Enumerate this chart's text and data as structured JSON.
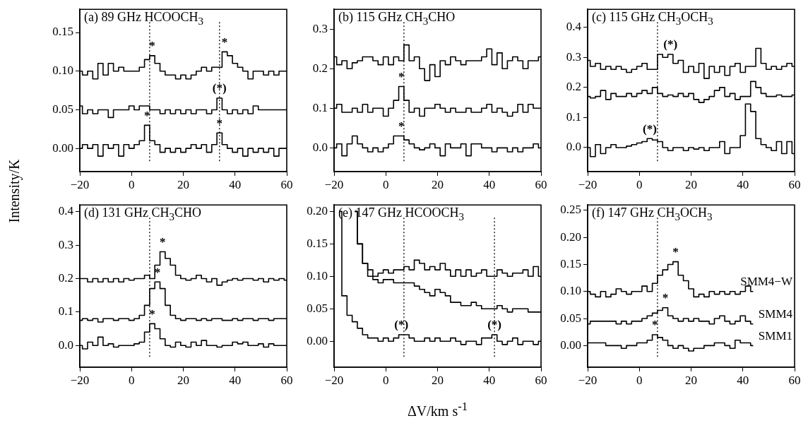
{
  "chart_data": [
    {
      "type": "step",
      "title": "(a) 89 GHz HCOOCH$_{3}$",
      "ylabel": "Intensity/K",
      "x": [
        -20,
        -18,
        -16,
        -14,
        -12,
        -10,
        -8,
        -6,
        -4,
        -2,
        0,
        2,
        4,
        6,
        8,
        10,
        12,
        14,
        16,
        18,
        20,
        22,
        24,
        26,
        28,
        30,
        32,
        34,
        36,
        38,
        40,
        42,
        44,
        46,
        48,
        50,
        52,
        54,
        56,
        58,
        60
      ],
      "xlim": [
        -20,
        60
      ],
      "xticks": [
        -20,
        0,
        20,
        40,
        60
      ],
      "ylim": [
        -0.03,
        0.18
      ],
      "yticks": [
        {
          "value": 0,
          "label": "0.00"
        },
        {
          "value": 0.05,
          "label": "0.05"
        },
        {
          "value": 0.1,
          "label": "0.10"
        },
        {
          "value": 0.15,
          "label": "0.15"
        }
      ],
      "series": [
        {
          "color": "#000000",
          "values": [
            0.1,
            0.095,
            0.1,
            0.09,
            0.11,
            0.095,
            0.11,
            0.1,
            0.105,
            0.1,
            0.1,
            0.1,
            0.105,
            0.115,
            0.12,
            0.11,
            0.1,
            0.095,
            0.095,
            0.09,
            0.095,
            0.09,
            0.095,
            0.1,
            0.105,
            0.1,
            0.105,
            0.105,
            0.125,
            0.12,
            0.11,
            0.105,
            0.1,
            0.09,
            0.1,
            0.1,
            0.095,
            0.1,
            0.095,
            0.1,
            0.1
          ]
        },
        {
          "color": "#000000",
          "values": [
            0.055,
            0.045,
            0.05,
            0.045,
            0.05,
            0.05,
            0.04,
            0.05,
            0.05,
            0.05,
            0.055,
            0.05,
            0.055,
            0.055,
            0.05,
            0.05,
            0.045,
            0.05,
            0.045,
            0.05,
            0.045,
            0.05,
            0.045,
            0.05,
            0.05,
            0.045,
            0.05,
            0.065,
            0.05,
            0.045,
            0.05,
            0.045,
            0.05,
            0.045,
            0.055,
            0.05,
            0.05,
            0.05,
            0.05,
            0.05,
            0.05
          ]
        },
        {
          "color": "#000000",
          "values": [
            0.0,
            0.005,
            0.0,
            0.005,
            -0.01,
            0.005,
            0.0,
            0.005,
            -0.01,
            0.005,
            0.0,
            0.005,
            0.01,
            0.03,
            0.01,
            0.005,
            -0.005,
            0.0,
            -0.005,
            0.0,
            -0.005,
            0.0,
            0.005,
            0.0,
            0.005,
            -0.005,
            0.005,
            0.02,
            0.005,
            0.0,
            -0.005,
            0.0,
            -0.01,
            0.0,
            -0.005,
            0.0,
            -0.005,
            0.0,
            -0.01,
            0.0,
            0.0
          ]
        }
      ],
      "ref_lines": [
        {
          "axis": "x",
          "value": 7,
          "line_style": "dotted"
        },
        {
          "axis": "x",
          "value": 34,
          "line_style": "dotted"
        }
      ],
      "annotations": [
        {
          "text": "*",
          "x": 8,
          "y": 0.12
        },
        {
          "text": "*",
          "x": 36,
          "y": 0.125
        },
        {
          "text": "(*)",
          "x": 34,
          "y": 0.065
        },
        {
          "text": "*",
          "x": 6,
          "y": 0.03
        },
        {
          "text": "*",
          "x": 34,
          "y": 0.02
        }
      ]
    },
    {
      "type": "step",
      "title": "(b) 115 GHz CH$_{3}$CHO",
      "x": [
        -20,
        -18,
        -16,
        -14,
        -12,
        -10,
        -8,
        -6,
        -4,
        -2,
        0,
        2,
        4,
        6,
        8,
        10,
        12,
        14,
        16,
        18,
        20,
        22,
        24,
        26,
        28,
        30,
        32,
        34,
        36,
        38,
        40,
        42,
        44,
        46,
        48,
        50,
        52,
        54,
        56,
        58,
        60
      ],
      "xlim": [
        -20,
        60
      ],
      "xticks": [
        -20,
        0,
        20,
        40,
        60
      ],
      "ylim": [
        -0.06,
        0.35
      ],
      "yticks": [
        {
          "value": 0,
          "label": "0.0"
        },
        {
          "value": 0.1,
          "label": "0.1"
        },
        {
          "value": 0.2,
          "label": "0.2"
        },
        {
          "value": 0.3,
          "label": "0.3"
        }
      ],
      "series": [
        {
          "color": "#000000",
          "values": [
            0.23,
            0.21,
            0.22,
            0.2,
            0.215,
            0.22,
            0.23,
            0.23,
            0.22,
            0.21,
            0.23,
            0.21,
            0.23,
            0.22,
            0.26,
            0.22,
            0.23,
            0.2,
            0.17,
            0.21,
            0.18,
            0.22,
            0.21,
            0.23,
            0.22,
            0.21,
            0.22,
            0.22,
            0.22,
            0.23,
            0.25,
            0.21,
            0.24,
            0.2,
            0.22,
            0.23,
            0.22,
            0.2,
            0.22,
            0.22,
            0.23
          ]
        },
        {
          "color": "#000000",
          "values": [
            0.1,
            0.11,
            0.09,
            0.09,
            0.1,
            0.09,
            0.11,
            0.09,
            0.1,
            0.1,
            0.08,
            0.1,
            0.12,
            0.155,
            0.12,
            0.09,
            0.1,
            0.08,
            0.1,
            0.1,
            0.11,
            0.1,
            0.09,
            0.1,
            0.09,
            0.09,
            0.1,
            0.09,
            0.09,
            0.1,
            0.11,
            0.09,
            0.1,
            0.09,
            0.08,
            0.09,
            0.11,
            0.09,
            0.11,
            0.1,
            0.1
          ]
        },
        {
          "color": "#000000",
          "values": [
            0.0,
            0.01,
            -0.02,
            0.01,
            0.03,
            0.01,
            0.0,
            -0.01,
            0.0,
            -0.01,
            0.0,
            0.01,
            0.03,
            0.03,
            0.02,
            0.01,
            0.0,
            -0.005,
            0.0,
            0.01,
            0.0,
            -0.02,
            0.01,
            0.0,
            0.0,
            0.01,
            -0.02,
            0.01,
            0.01,
            0.0,
            0.0,
            -0.01,
            0.0,
            0.0,
            -0.01,
            0.0,
            -0.01,
            0.0,
            0.0,
            0.01,
            0.0
          ]
        }
      ],
      "ref_lines": [
        {
          "axis": "x",
          "value": 7,
          "line_style": "dotted"
        }
      ],
      "annotations": [
        {
          "text": "*",
          "x": 6,
          "y": 0.155
        },
        {
          "text": "*",
          "x": 6,
          "y": 0.03
        }
      ]
    },
    {
      "type": "step",
      "title": "(c) 115 GHz CH$_{3}$OCH$_{3}$",
      "x": [
        -20,
        -18,
        -16,
        -14,
        -12,
        -10,
        -8,
        -6,
        -4,
        -2,
        0,
        2,
        4,
        6,
        8,
        10,
        12,
        14,
        16,
        18,
        20,
        22,
        24,
        26,
        28,
        30,
        32,
        34,
        36,
        38,
        40,
        42,
        44,
        46,
        48,
        50,
        52,
        54,
        56,
        58,
        60
      ],
      "xlim": [
        -20,
        60
      ],
      "xticks": [
        -20,
        0,
        20,
        40,
        60
      ],
      "ylim": [
        -0.08,
        0.46
      ],
      "yticks": [
        {
          "value": 0,
          "label": "0.0"
        },
        {
          "value": 0.1,
          "label": "0.1"
        },
        {
          "value": 0.2,
          "label": "0.2"
        },
        {
          "value": 0.3,
          "label": "0.3"
        },
        {
          "value": 0.4,
          "label": "0.4"
        }
      ],
      "series": [
        {
          "color": "#000000",
          "values": [
            0.29,
            0.27,
            0.28,
            0.26,
            0.27,
            0.26,
            0.27,
            0.26,
            0.25,
            0.26,
            0.27,
            0.28,
            0.26,
            0.26,
            0.31,
            0.3,
            0.31,
            0.28,
            0.29,
            0.25,
            0.27,
            0.25,
            0.28,
            0.23,
            0.27,
            0.25,
            0.27,
            0.24,
            0.27,
            0.28,
            0.25,
            0.27,
            0.27,
            0.33,
            0.28,
            0.26,
            0.27,
            0.26,
            0.27,
            0.28,
            0.27
          ]
        },
        {
          "color": "#000000",
          "values": [
            0.17,
            0.165,
            0.17,
            0.19,
            0.16,
            0.18,
            0.17,
            0.17,
            0.18,
            0.17,
            0.18,
            0.19,
            0.18,
            0.2,
            0.18,
            0.17,
            0.175,
            0.17,
            0.18,
            0.17,
            0.18,
            0.16,
            0.15,
            0.16,
            0.17,
            0.19,
            0.2,
            0.17,
            0.18,
            0.16,
            0.17,
            0.17,
            0.22,
            0.2,
            0.18,
            0.17,
            0.17,
            0.175,
            0.17,
            0.17,
            0.175
          ]
        },
        {
          "color": "#000000",
          "values": [
            0.0,
            -0.03,
            0.01,
            -0.02,
            0.0,
            0.01,
            0.0,
            0.0,
            0.005,
            0.01,
            0.015,
            0.02,
            0.03,
            0.025,
            0.02,
            0.0,
            -0.01,
            0.0,
            0.0,
            -0.01,
            0.0,
            -0.005,
            0.0,
            -0.01,
            0.0,
            0.0,
            0.02,
            -0.02,
            0.0,
            0.0,
            0.04,
            0.145,
            0.12,
            0.03,
            0.01,
            0.0,
            -0.01,
            0.02,
            -0.02,
            0.02,
            -0.02
          ]
        }
      ],
      "ref_lines": [
        {
          "axis": "x",
          "value": 7,
          "line_style": "dotted"
        }
      ],
      "annotations": [
        {
          "text": "(*)",
          "x": 12,
          "y": 0.31
        },
        {
          "text": "(*)",
          "x": 4,
          "y": 0.03
        }
      ]
    },
    {
      "type": "step",
      "title": "(d) 131 GHz CH$_{3}$CHO",
      "x": [
        -20,
        -18,
        -16,
        -14,
        -12,
        -10,
        -8,
        -6,
        -4,
        -2,
        0,
        2,
        4,
        6,
        8,
        10,
        12,
        14,
        16,
        18,
        20,
        22,
        24,
        26,
        28,
        30,
        32,
        34,
        36,
        38,
        40,
        42,
        44,
        46,
        48,
        50,
        52,
        54,
        56,
        58,
        60
      ],
      "xlim": [
        -20,
        60
      ],
      "xticks": [
        -20,
        0,
        20,
        40,
        60
      ],
      "ylim": [
        -0.065,
        0.42
      ],
      "yticks": [
        {
          "value": 0,
          "label": "0.0"
        },
        {
          "value": 0.1,
          "label": "0.1"
        },
        {
          "value": 0.2,
          "label": "0.2"
        },
        {
          "value": 0.3,
          "label": "0.3"
        },
        {
          "value": 0.4,
          "label": "0.4"
        }
      ],
      "series": [
        {
          "color": "#000000",
          "values": [
            0.2,
            0.2,
            0.19,
            0.2,
            0.19,
            0.2,
            0.19,
            0.2,
            0.19,
            0.2,
            0.195,
            0.2,
            0.2,
            0.21,
            0.2,
            0.24,
            0.28,
            0.26,
            0.24,
            0.21,
            0.2,
            0.195,
            0.2,
            0.21,
            0.2,
            0.19,
            0.2,
            0.18,
            0.19,
            0.195,
            0.2,
            0.195,
            0.2,
            0.2,
            0.195,
            0.2,
            0.19,
            0.2,
            0.195,
            0.2,
            0.195
          ]
        },
        {
          "color": "#000000",
          "values": [
            0.075,
            0.08,
            0.075,
            0.08,
            0.07,
            0.08,
            0.08,
            0.075,
            0.08,
            0.08,
            0.075,
            0.08,
            0.09,
            0.12,
            0.17,
            0.19,
            0.17,
            0.12,
            0.09,
            0.08,
            0.075,
            0.08,
            0.08,
            0.075,
            0.08,
            0.075,
            0.08,
            0.08,
            0.075,
            0.075,
            0.08,
            0.075,
            0.08,
            0.08,
            0.075,
            0.08,
            0.08,
            0.075,
            0.08,
            0.08,
            0.08
          ]
        },
        {
          "color": "#000000",
          "values": [
            0.0,
            -0.01,
            0.01,
            0.0,
            0.025,
            0.0,
            0.005,
            -0.005,
            0.0,
            0.0,
            0.0,
            0.005,
            0.01,
            0.04,
            0.065,
            0.05,
            0.02,
            0.0,
            -0.005,
            0.01,
            0.0,
            -0.005,
            0.01,
            0.0,
            0.015,
            0.0,
            0.0,
            -0.005,
            0.0,
            0.0,
            0.01,
            0.005,
            0.01,
            0.0,
            0.0,
            0.005,
            -0.005,
            0.005,
            0.0,
            0.0,
            0.0
          ]
        }
      ],
      "ref_lines": [
        {
          "axis": "x",
          "value": 7,
          "line_style": "dotted"
        }
      ],
      "annotations": [
        {
          "text": "*",
          "x": 12,
          "y": 0.28
        },
        {
          "text": "*",
          "x": 10,
          "y": 0.19
        },
        {
          "text": "*",
          "x": 8,
          "y": 0.065
        }
      ]
    },
    {
      "type": "step",
      "title": "(e) 147 GHz HCOOCH$_{3}$",
      "xlabel": "ΔV/km s$^{-1}$",
      "x": [
        -18,
        -16,
        -14,
        -12,
        -10,
        -8,
        -6,
        -4,
        -2,
        0,
        2,
        4,
        6,
        8,
        10,
        12,
        14,
        16,
        18,
        20,
        22,
        24,
        26,
        28,
        30,
        32,
        34,
        36,
        38,
        40,
        42,
        44,
        46,
        48,
        50,
        52,
        54,
        56,
        58,
        60
      ],
      "xlim": [
        -20,
        60
      ],
      "xticks": [
        -20,
        0,
        20,
        40,
        60
      ],
      "ylim": [
        -0.04,
        0.21
      ],
      "yticks": [
        {
          "value": 0,
          "label": "0.00"
        },
        {
          "value": 0.05,
          "label": "0.05"
        },
        {
          "value": 0.1,
          "label": "0.10"
        },
        {
          "value": 0.15,
          "label": "0.15"
        },
        {
          "value": 0.2,
          "label": "0.20"
        }
      ],
      "series": [
        {
          "color": "#000000",
          "values": [
            null,
            null,
            null,
            0.2,
            0.15,
            0.12,
            0.11,
            0.1,
            0.105,
            0.11,
            0.105,
            0.11,
            0.11,
            0.115,
            0.11,
            0.125,
            0.12,
            0.11,
            0.115,
            0.11,
            0.12,
            0.11,
            0.1,
            0.11,
            0.1,
            0.11,
            0.1,
            0.105,
            0.11,
            0.1,
            0.1,
            0.11,
            0.105,
            0.1,
            0.105,
            0.105,
            0.11,
            0.1,
            0.115,
            0.1
          ]
        },
        {
          "color": "#000000",
          "values": [
            null,
            null,
            null,
            0.2,
            0.15,
            0.12,
            0.1,
            0.095,
            0.09,
            0.095,
            0.095,
            0.09,
            0.09,
            0.09,
            0.09,
            0.085,
            0.08,
            0.075,
            0.07,
            0.08,
            0.075,
            0.07,
            0.06,
            0.06,
            0.055,
            0.055,
            0.06,
            0.055,
            0.05,
            0.05,
            0.05,
            0.055,
            0.05,
            0.045,
            0.05,
            0.05,
            0.05,
            0.045,
            0.045,
            0.045
          ]
        },
        {
          "color": "#000000",
          "values": [
            0.2,
            0.07,
            0.04,
            0.03,
            0.02,
            0.01,
            0.005,
            0.005,
            0.0,
            0.005,
            0.0,
            0.005,
            0.01,
            0.01,
            0.005,
            0.0,
            0.0,
            0.005,
            0.0,
            0.005,
            0.0,
            0.0,
            0.005,
            0.0,
            -0.005,
            0.0,
            0.0,
            -0.005,
            0.005,
            0.005,
            0.01,
            0.0,
            -0.005,
            0.0,
            0.005,
            -0.005,
            0.0,
            0.0,
            -0.005,
            0.0
          ]
        }
      ],
      "ref_lines": [
        {
          "axis": "x",
          "value": 7,
          "line_style": "dotted"
        },
        {
          "axis": "x",
          "value": 42,
          "line_style": "dotted"
        }
      ],
      "annotations": [
        {
          "text": "(*)",
          "x": 6,
          "y": 0.01
        },
        {
          "text": "(*)",
          "x": 42,
          "y": 0.01
        }
      ]
    },
    {
      "type": "step",
      "title": "(f) 147 GHz CH$_{3}$OCH$_{3}$",
      "x": [
        -20,
        -18,
        -16,
        -14,
        -12,
        -10,
        -8,
        -6,
        -4,
        -2,
        0,
        2,
        4,
        6,
        8,
        10,
        12,
        14,
        16,
        18,
        20,
        22,
        24,
        26,
        28,
        30,
        32,
        34,
        36,
        38,
        40,
        42,
        44
      ],
      "xlim": [
        -20,
        60
      ],
      "xticks": [
        -20,
        0,
        20,
        40,
        60
      ],
      "ylim": [
        -0.04,
        0.26
      ],
      "yticks": [
        {
          "value": 0,
          "label": "0.00"
        },
        {
          "value": 0.05,
          "label": "0.05"
        },
        {
          "value": 0.1,
          "label": "0.10"
        },
        {
          "value": 0.15,
          "label": "0.15"
        },
        {
          "value": 0.2,
          "label": "0.20"
        },
        {
          "value": 0.25,
          "label": "0.25"
        }
      ],
      "series": [
        {
          "name": "SMM4−W",
          "color": "#000000",
          "values": [
            0.1,
            0.095,
            0.09,
            0.1,
            0.09,
            0.095,
            0.105,
            0.1,
            0.095,
            0.1,
            0.1,
            0.11,
            0.1,
            0.115,
            0.13,
            0.14,
            0.15,
            0.155,
            0.13,
            0.12,
            0.105,
            0.09,
            0.095,
            0.09,
            0.1,
            0.095,
            0.1,
            0.095,
            0.1,
            0.095,
            0.1,
            0.11,
            0.1
          ]
        },
        {
          "name": "SMM4",
          "color": "#000000",
          "values": [
            0.04,
            0.045,
            0.045,
            0.045,
            0.045,
            0.045,
            0.04,
            0.045,
            0.04,
            0.045,
            0.045,
            0.05,
            0.055,
            0.06,
            0.065,
            0.07,
            0.055,
            0.05,
            0.045,
            0.05,
            0.045,
            0.05,
            0.045,
            0.045,
            0.04,
            0.05,
            0.055,
            0.045,
            0.04,
            0.045,
            0.055,
            0.045,
            0.04
          ]
        },
        {
          "name": "SMM1",
          "color": "#000000",
          "values": [
            0.005,
            0.005,
            0.005,
            0.005,
            0.0,
            0.0,
            0.0,
            -0.005,
            0.0,
            0.0,
            0.005,
            0.005,
            0.01,
            0.02,
            0.015,
            0.01,
            0.0,
            -0.005,
            0.0,
            -0.005,
            -0.01,
            -0.005,
            -0.005,
            0.0,
            0.0,
            0.005,
            0.005,
            0.0,
            -0.005,
            0.01,
            0.005,
            0.005,
            0.0
          ]
        }
      ],
      "ref_lines": [
        {
          "axis": "x",
          "value": 7,
          "line_style": "dotted"
        }
      ],
      "annotations": [
        {
          "text": "*",
          "x": 14,
          "y": 0.155
        },
        {
          "text": "*",
          "x": 10,
          "y": 0.07
        },
        {
          "text": "*",
          "x": 6,
          "y": 0.02
        }
      ]
    }
  ]
}
